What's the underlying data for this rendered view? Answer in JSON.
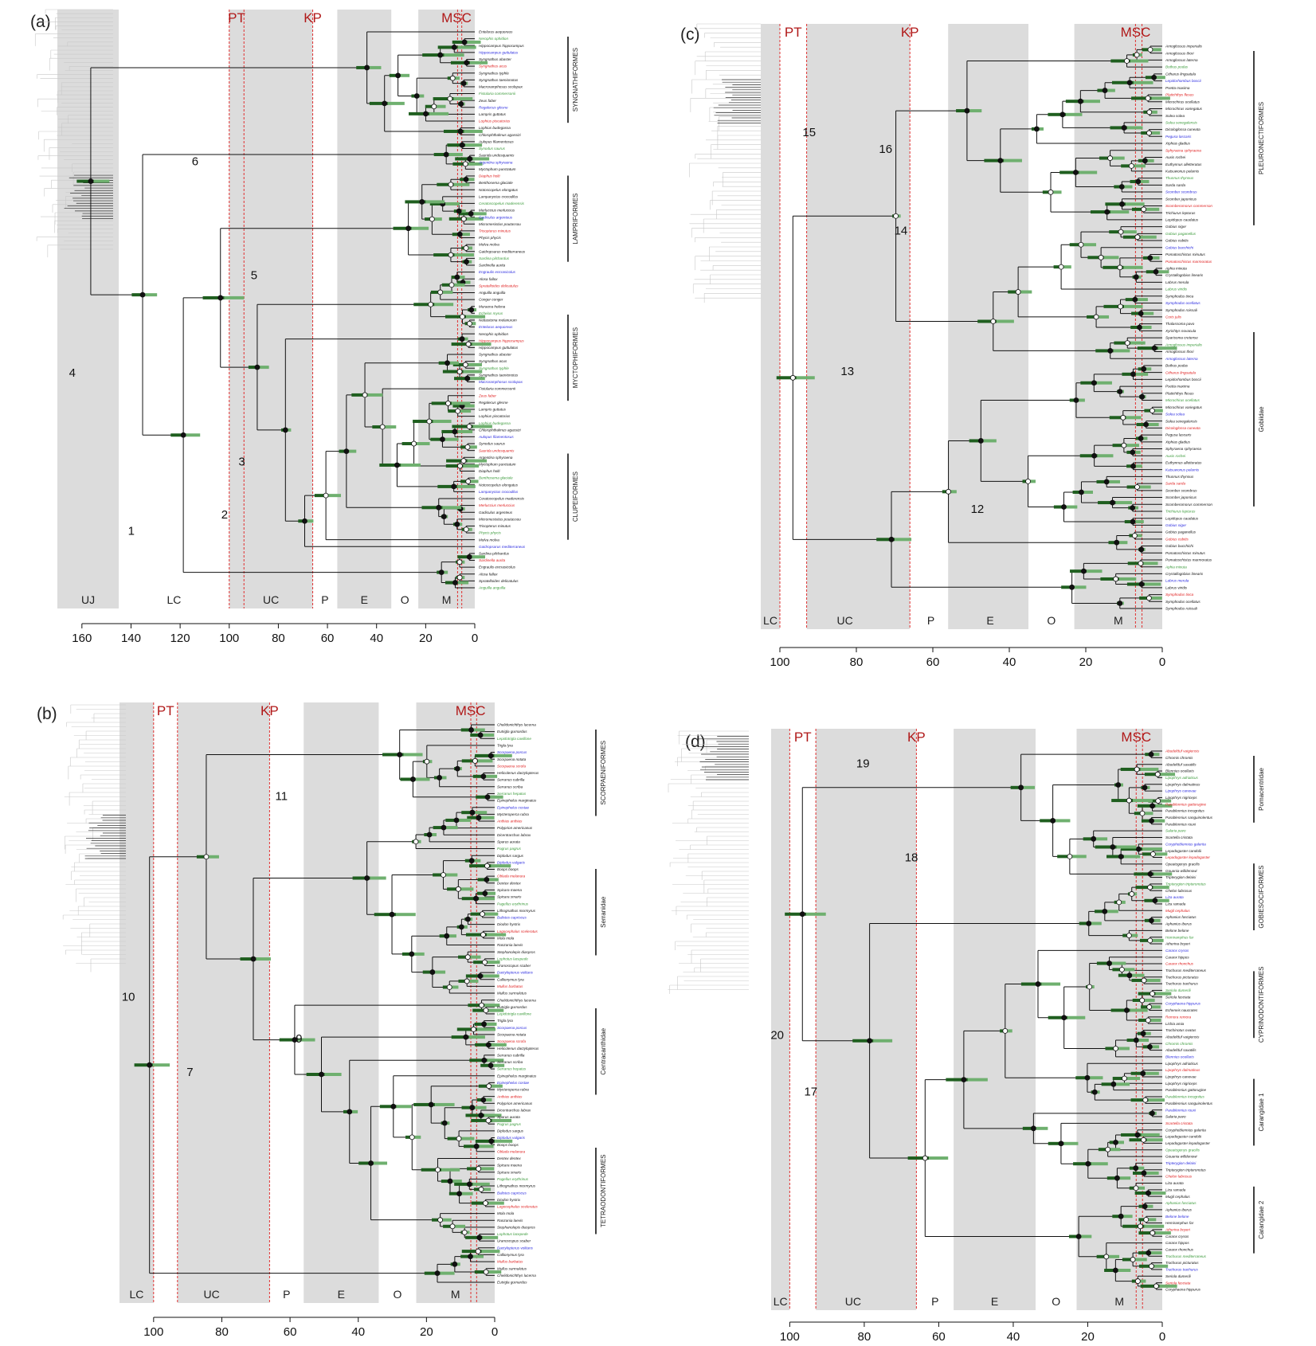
{
  "colors": {
    "band": "#dcdcdc",
    "branch": "#111111",
    "ci_bar": "#1f5f1f",
    "ci_hatch": "#6fb06f",
    "event_line": "#e03030",
    "event_text": "#b01818",
    "taxon_default": "#111111",
    "taxon_red": "#e02020",
    "taxon_blue": "#2a2ae0",
    "taxon_green": "#3a9a3a",
    "group_grey": "#bbbbbb"
  },
  "panels": [
    {
      "id": "a",
      "label": "(a)",
      "axis": {
        "max": 170,
        "ticks": [
          "160",
          "140",
          "120",
          "100",
          "80",
          "60",
          "40",
          "20",
          "0"
        ]
      },
      "periods": [
        "UJ",
        "LC",
        "UC",
        "P",
        "E",
        "O",
        "M"
      ],
      "events": [
        "PT",
        "KP",
        "MSC"
      ],
      "node_numbers": [
        "1",
        "2",
        "3",
        "4",
        "5",
        "6"
      ],
      "groups": [
        "SYNGNATHIFORMES",
        "LAMPRIFORMES",
        "MYCTOPHIFORMES",
        "CLUPEIFORMES"
      ],
      "taxa": [
        "Entelurus aequoreus",
        "Nerophis ophidion",
        "Hippocampus hippocampus",
        "Hippocampus guttulatus",
        "Syngnathus abaster",
        "Syngnathus acus",
        "Syngnathus typhle",
        "Syngnathus taenionotus",
        "Macroramphosus scolopax",
        "Fistularia commersonii",
        "Zeus faber",
        "Regalecus glesne",
        "Lampris guttatus",
        "Lophius piscatorius",
        "Lophius budegassa",
        "Chlorophthalmus agassizi",
        "Aulopus filamentosus",
        "Synodus saurus",
        "Saurida undosquamis",
        "Argentina sphyraena",
        "Myctophum punctatum",
        "Diaphus holti",
        "Benthosema glaciale",
        "Notoscopelus elongatus",
        "Lampanyctus crocodilus",
        "Ceratoscopelus maderensis",
        "Merluccius merluccius",
        "Gadiculus argenteus",
        "Micromesistius poutassou",
        "Trisopterus minutus",
        "Phycis phycis",
        "Molva molva",
        "Gaidropsarus mediterraneus",
        "Sardina pilchardus",
        "Sardinella aurita",
        "Engraulis encrasicolus",
        "Alosa fallax",
        "Spratelloides delicatulus",
        "Anguilla anguilla",
        "Conger conger",
        "Muraena helena",
        "Echelus myrus",
        "Nettastoma melanurum"
      ]
    },
    {
      "id": "b",
      "label": "(b)",
      "axis": {
        "max": 110,
        "ticks": [
          "100",
          "80",
          "60",
          "40",
          "20",
          "0"
        ]
      },
      "periods": [
        "LC",
        "UC",
        "P",
        "E",
        "O",
        "M"
      ],
      "events": [
        "PT",
        "KP",
        "MSC"
      ],
      "node_numbers": [
        "7",
        "9",
        "10",
        "11"
      ],
      "groups": [
        "SCORPAENIFORMES",
        "Serranidae",
        "Centracanthidae",
        "TETRAODONTIFORMES"
      ],
      "taxa": [
        "Chelidonichthys lucerna",
        "Eutrigla gurnardus",
        "Lepidotrigla cavillone",
        "Trigla lyra",
        "Scorpaena porcus",
        "Scorpaena notata",
        "Scorpaena scrofa",
        "Helicolenus dactylopterus",
        "Serranus cabrilla",
        "Serranus scriba",
        "Serranus hepatus",
        "Epinephelus marginatus",
        "Epinephelus costae",
        "Mycteroperca rubra",
        "Anthias anthias",
        "Polyprion americanus",
        "Dicentrarchus labrax",
        "Sparus aurata",
        "Pagrus pagrus",
        "Diplodus sargus",
        "Diplodus vulgaris",
        "Boops boops",
        "Oblada melanura",
        "Dentex dentex",
        "Spicara maena",
        "Spicara smaris",
        "Pagellus erythrinus",
        "Lithognathus mormyrus",
        "Balistes capriscus",
        "Diodon hystrix",
        "Lagocephalus sceleratus",
        "Mola mola",
        "Ranzania laevis",
        "Stephanolepis diaspros",
        "Lophotus lacepede",
        "Uranoscopus scaber",
        "Dactylopterus volitans",
        "Callionymus lyra",
        "Mullus barbatus",
        "Mullus surmuletus"
      ]
    },
    {
      "id": "c",
      "label": "(c)",
      "axis": {
        "max": 105,
        "ticks": [
          "100",
          "80",
          "60",
          "40",
          "20",
          "0"
        ]
      },
      "periods": [
        "LC",
        "UC",
        "P",
        "E",
        "O",
        "M"
      ],
      "events": [
        "PT",
        "KP",
        "MSC"
      ],
      "node_numbers": [
        "12",
        "13",
        "14",
        "15",
        "16"
      ],
      "groups": [
        "PLEURONECTIFORMES",
        "Gobiidae"
      ],
      "taxa": [
        "Arnoglossus imperialis",
        "Arnoglossus thori",
        "Arnoglossus laterna",
        "Bothus podas",
        "Citharus linguatula",
        "Lepidorhombus boscii",
        "Psetta maxima",
        "Platichthys flesus",
        "Microchirus ocellatus",
        "Microchirus variegatus",
        "Solea solea",
        "Solea senegalensis",
        "Dicologlossa cuneata",
        "Pegusa lascaris",
        "Xiphias gladius",
        "Sphyraena sphyraena",
        "Auxis rochei",
        "Euthynnus alletteratus",
        "Katsuwonus pelamis",
        "Thunnus thynnus",
        "Sarda sarda",
        "Scomber scombrus",
        "Scomber japonicus",
        "Scomberomorus commerson",
        "Trichiurus lepturus",
        "Lepidopus caudatus",
        "Gobius niger",
        "Gobius paganellus",
        "Gobius cobitis",
        "Gobius bucchichi",
        "Pomatoschistus minutus",
        "Pomatoschistus marmoratus",
        "Aphia minuta",
        "Crystallogobius linearis",
        "Labrus merula",
        "Labrus viridis",
        "Symphodus tinca",
        "Symphodus ocellatus",
        "Symphodus roissali",
        "Coris julis",
        "Thalassoma pavo",
        "Xyrichtys novacula",
        "Sparisoma cretense"
      ]
    },
    {
      "id": "d",
      "label": "(d)",
      "axis": {
        "max": 105,
        "ticks": [
          "100",
          "80",
          "60",
          "40",
          "20",
          "0"
        ]
      },
      "periods": [
        "LC",
        "UC",
        "P",
        "E",
        "O",
        "M"
      ],
      "events": [
        "PT",
        "KP",
        "MSC"
      ],
      "node_numbers": [
        "17",
        "18",
        "19",
        "20"
      ],
      "groups": [
        "Pomacentridae",
        "GOBIESOCIFORMES",
        "CYPRINODONTIFORMES",
        "Carangidae 1",
        "Carangidae 2"
      ],
      "taxa": [
        "Abudefduf vaigiensis",
        "Chromis chromis",
        "Abudefduf saxatilis",
        "Blennius ocellaris",
        "Lipophrys adriaticus",
        "Lipophrys dalmatinus",
        "Lipophrys canevae",
        "Lipophrys nigriceps",
        "Parablennius gattorugine",
        "Parablennius incognitus",
        "Parablennius sanguinolentus",
        "Parablennius rouxi",
        "Salaria pavo",
        "Scartella cristata",
        "Coryphoblennius galerita",
        "Lepadogaster candolii",
        "Lepadogaster lepadogaster",
        "Opeatogenys gracilis",
        "Gouania willdenowi",
        "Tripterygion delaisi",
        "Tripterygion tripteronotus",
        "Chelon labrosus",
        "Liza aurata",
        "Liza ramada",
        "Mugil cephalus",
        "Aphanius fasciatus",
        "Aphanius iberus",
        "Belone belone",
        "Hemiramphus far",
        "Atherina boyeri",
        "Caranx crysos",
        "Caranx hippos",
        "Caranx rhonchus",
        "Trachurus mediterraneus",
        "Trachurus picturatus",
        "Trachurus trachurus",
        "Seriola dumerili",
        "Seriola fasciata",
        "Coryphaena hippurus",
        "Echeneis naucrates",
        "Remora remora",
        "Lichia amia",
        "Trachinotus ovatus"
      ]
    }
  ]
}
